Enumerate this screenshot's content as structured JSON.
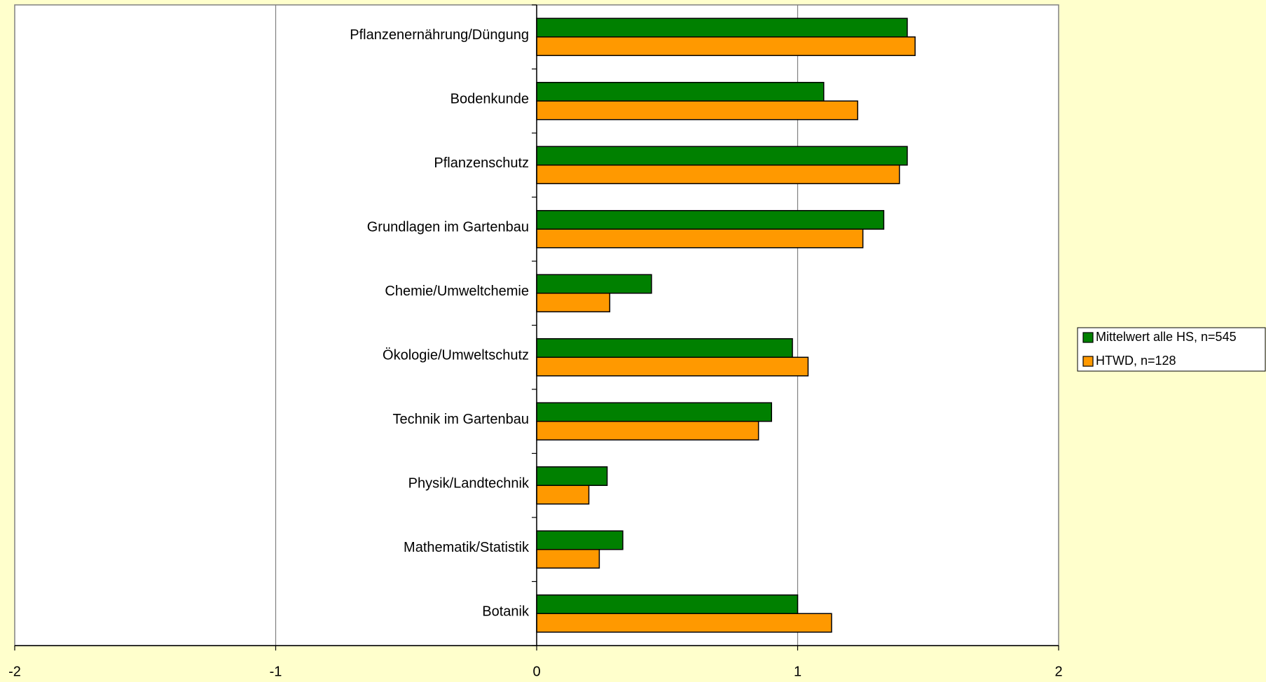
{
  "chart_data": {
    "type": "bar",
    "orientation": "horizontal",
    "categories": [
      "Pflanzenernährung/Düngung",
      "Bodenkunde",
      "Pflanzenschutz",
      "Grundlagen im Gartenbau",
      "Chemie/Umweltchemie",
      "Ökologie/Umweltschutz",
      "Technik im Gartenbau",
      "Physik/Landtechnik",
      "Mathematik/Statistik",
      "Botanik"
    ],
    "series": [
      {
        "name": "Mittelwert alle HS, n=545",
        "color": "#008000",
        "values": [
          1.42,
          1.1,
          1.42,
          1.33,
          0.44,
          0.98,
          0.9,
          0.27,
          0.33,
          1.0
        ]
      },
      {
        "name": "HTWD, n=128",
        "color": "#ff9900",
        "values": [
          1.45,
          1.23,
          1.39,
          1.25,
          0.28,
          1.04,
          0.85,
          0.2,
          0.24,
          1.13
        ]
      }
    ],
    "xlim": [
      -2,
      2
    ],
    "xticks": [
      -2,
      -1,
      0,
      1,
      2
    ],
    "grid": true,
    "legend": "right"
  }
}
